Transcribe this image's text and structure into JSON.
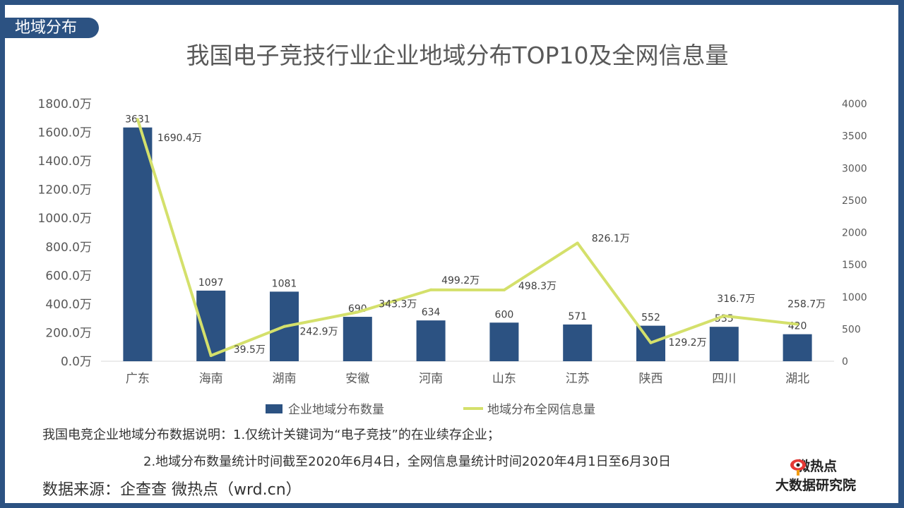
{
  "header": {
    "tag": "地域分布",
    "title": "我国电子竞技行业企业地域分布TOP10及全网信息量"
  },
  "chart_data": {
    "type": "bar+line",
    "categories": [
      "广东",
      "海南",
      "湖南",
      "安徽",
      "河南",
      "山东",
      "江苏",
      "陕西",
      "四川",
      "湖北"
    ],
    "series": [
      {
        "name": "企业地域分布数量",
        "type": "bar",
        "axis": "right",
        "color": "#2c5282",
        "values": [
          3631,
          1097,
          1081,
          690,
          634,
          600,
          571,
          552,
          535,
          420
        ],
        "labels": [
          "3631",
          "1097",
          "1081",
          "690",
          "634",
          "600",
          "571",
          "552",
          "535",
          "420"
        ]
      },
      {
        "name": "地域分布全网信息量",
        "type": "line",
        "axis": "left",
        "color": "#d4e06b",
        "values": [
          1690.4,
          39.5,
          242.9,
          343.3,
          499.2,
          498.3,
          826.1,
          129.2,
          316.7,
          258.7
        ],
        "labels": [
          "1690.4万",
          "39.5万",
          "242.9万",
          "343.3万",
          "499.2万",
          "498.3万",
          "826.1万",
          "129.2万",
          "316.7万",
          "258.7万"
        ]
      }
    ],
    "left_axis": {
      "ylim": [
        0,
        1800
      ],
      "ticks": [
        "0.0万",
        "200.0万",
        "400.0万",
        "600.0万",
        "800.0万",
        "1000.0万",
        "1200.0万",
        "1400.0万",
        "1600.0万",
        "1800.0万"
      ]
    },
    "right_axis": {
      "ylim": [
        0,
        4000
      ],
      "ticks": [
        "0",
        "500",
        "1000",
        "1500",
        "2000",
        "2500",
        "3000",
        "3500",
        "4000"
      ]
    },
    "legend": "bottom",
    "grid": false
  },
  "notes": {
    "line1": "我国电竞企业地域分布数据说明：1.仅统计关键词为“电子竞技”的在业续存企业；",
    "line2": "2.地域分布数量统计时间截至2020年6月4日，全网信息量统计时间2020年4月1日至6月30日",
    "source": "数据来源：企查查 微热点（wrd.cn）"
  },
  "logo": {
    "line1": "微热点",
    "line2": "大数据研究院"
  }
}
